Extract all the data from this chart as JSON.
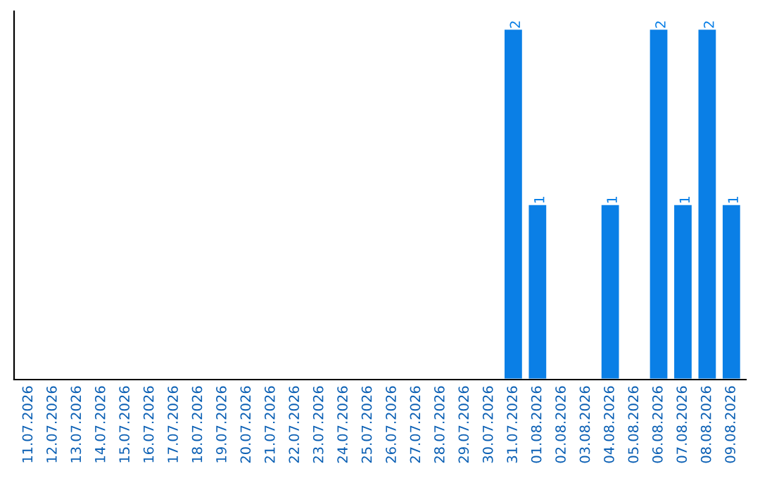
{
  "chart_data": {
    "type": "bar",
    "categories": [
      "11.07.2026",
      "12.07.2026",
      "13.07.2026",
      "14.07.2026",
      "15.07.2026",
      "16.07.2026",
      "17.07.2026",
      "18.07.2026",
      "19.07.2026",
      "20.07.2026",
      "21.07.2026",
      "22.07.2026",
      "23.07.2026",
      "24.07.2026",
      "25.07.2026",
      "26.07.2026",
      "27.07.2026",
      "28.07.2026",
      "29.07.2026",
      "30.07.2026",
      "31.07.2026",
      "01.08.2026",
      "02.08.2026",
      "03.08.2026",
      "04.08.2026",
      "05.08.2026",
      "06.08.2026",
      "07.08.2026",
      "08.08.2026",
      "09.08.2026"
    ],
    "values": [
      null,
      null,
      null,
      null,
      null,
      null,
      null,
      null,
      null,
      null,
      null,
      null,
      null,
      null,
      null,
      null,
      null,
      null,
      null,
      null,
      2,
      1,
      null,
      null,
      1,
      null,
      2,
      1,
      2,
      1
    ],
    "value_labels": [
      null,
      null,
      null,
      null,
      null,
      null,
      null,
      null,
      null,
      null,
      null,
      null,
      null,
      null,
      null,
      null,
      null,
      null,
      null,
      null,
      "2",
      "1",
      null,
      null,
      "1",
      null,
      "2",
      "1",
      "2",
      "1"
    ],
    "color": "#0a7fe6",
    "ylim": [
      0,
      2.1
    ],
    "tick_labels": "x",
    "grid": false,
    "legend": false
  }
}
